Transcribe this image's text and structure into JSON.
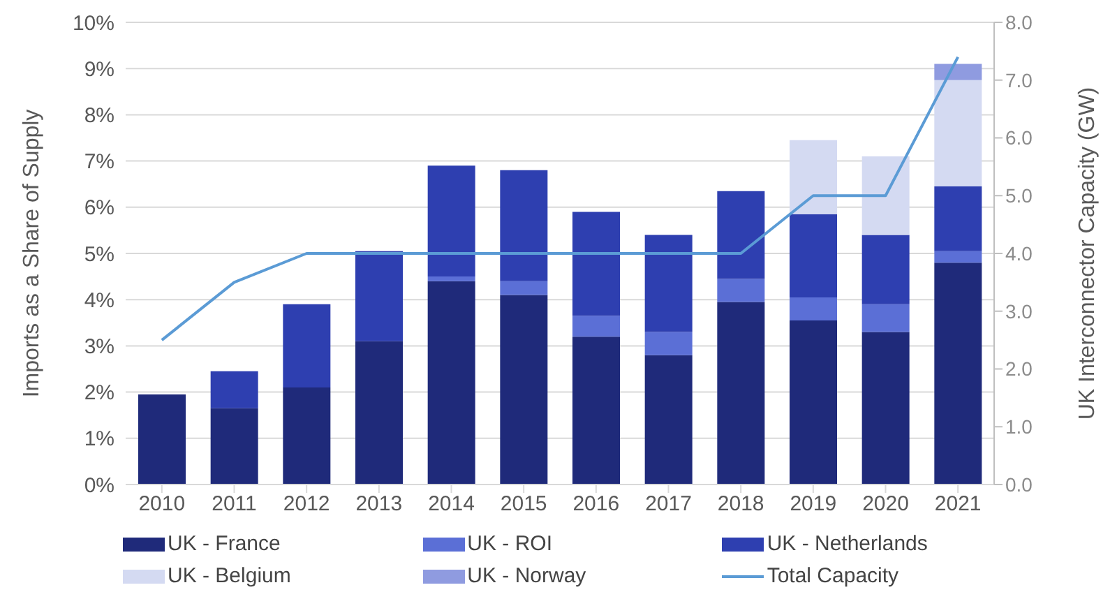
{
  "chart_data": {
    "type": "bar",
    "stacked": true,
    "categories": [
      "2010",
      "2011",
      "2012",
      "2013",
      "2014",
      "2015",
      "2016",
      "2017",
      "2018",
      "2019",
      "2020",
      "2021"
    ],
    "ylabel": "Imports as a Share of Supply",
    "y2label": "UK Interconnector Capacity (GW)",
    "ylim": [
      0,
      10
    ],
    "yticks": [
      {
        "value": 0,
        "label": "0%"
      },
      {
        "value": 1,
        "label": "1%"
      },
      {
        "value": 2,
        "label": "2%"
      },
      {
        "value": 3,
        "label": "3%"
      },
      {
        "value": 4,
        "label": "4%"
      },
      {
        "value": 5,
        "label": "5%"
      },
      {
        "value": 6,
        "label": "6%"
      },
      {
        "value": 7,
        "label": "7%"
      },
      {
        "value": 8,
        "label": "8%"
      },
      {
        "value": 9,
        "label": "9%"
      },
      {
        "value": 10,
        "label": "10%"
      }
    ],
    "y2lim": [
      0,
      8
    ],
    "y2ticks": [
      {
        "value": 0,
        "label": "0.0"
      },
      {
        "value": 1,
        "label": "1.0"
      },
      {
        "value": 2,
        "label": "2.0"
      },
      {
        "value": 3,
        "label": "3.0"
      },
      {
        "value": 4,
        "label": "4.0"
      },
      {
        "value": 5,
        "label": "5.0"
      },
      {
        "value": 6,
        "label": "6.0"
      },
      {
        "value": 7,
        "label": "7.0"
      },
      {
        "value": 8,
        "label": "8.0"
      }
    ],
    "grid": "y",
    "legend": "bottom",
    "series": [
      {
        "name": "UK - France",
        "color": "#1f2a7a",
        "values": [
          1.95,
          1.65,
          2.1,
          3.1,
          4.4,
          4.1,
          3.2,
          2.8,
          3.95,
          3.55,
          3.3,
          4.8
        ]
      },
      {
        "name": "UK - ROI",
        "color": "#5b6fd6",
        "values": [
          null,
          null,
          null,
          null,
          0.1,
          0.3,
          0.45,
          0.5,
          0.5,
          0.5,
          0.6,
          0.25
        ]
      },
      {
        "name": "UK - Netherlands",
        "color": "#2e3fb0",
        "values": [
          null,
          0.8,
          1.8,
          1.95,
          2.4,
          2.4,
          2.25,
          2.1,
          1.9,
          1.8,
          1.5,
          1.4
        ]
      },
      {
        "name": "UK - Belgium",
        "color": "#d4daf2",
        "values": [
          null,
          null,
          null,
          null,
          null,
          null,
          null,
          null,
          null,
          1.6,
          1.7,
          2.3
        ]
      },
      {
        "name": "UK - Norway",
        "color": "#8f9be0",
        "values": [
          null,
          null,
          null,
          null,
          null,
          null,
          null,
          null,
          null,
          null,
          null,
          0.35
        ]
      },
      {
        "name": "Total Capacity",
        "color": "#5b9bd5",
        "type": "line",
        "axis": "y2",
        "values": [
          2.5,
          3.5,
          4.0,
          4.0,
          4.0,
          4.0,
          4.0,
          4.0,
          4.0,
          5.0,
          5.0,
          7.4
        ]
      }
    ]
  }
}
